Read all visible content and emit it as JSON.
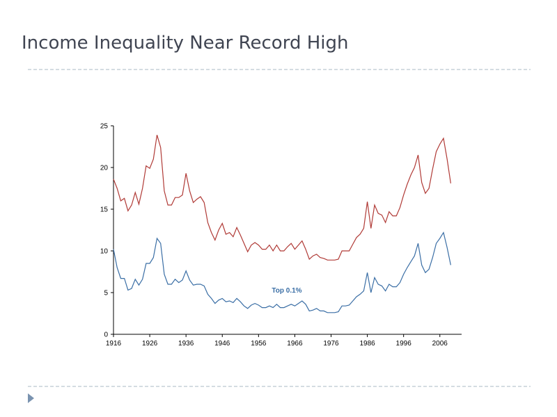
{
  "title": "Income Inequality Near Record High",
  "chart_data": {
    "type": "line",
    "x": [
      1916,
      1917,
      1918,
      1919,
      1920,
      1921,
      1922,
      1923,
      1924,
      1925,
      1926,
      1927,
      1928,
      1929,
      1930,
      1931,
      1932,
      1933,
      1934,
      1935,
      1936,
      1937,
      1938,
      1939,
      1940,
      1941,
      1942,
      1943,
      1944,
      1945,
      1946,
      1947,
      1948,
      1949,
      1950,
      1951,
      1952,
      1953,
      1954,
      1955,
      1956,
      1957,
      1958,
      1959,
      1960,
      1961,
      1962,
      1963,
      1964,
      1965,
      1966,
      1967,
      1968,
      1969,
      1970,
      1971,
      1972,
      1973,
      1974,
      1975,
      1976,
      1977,
      1978,
      1979,
      1980,
      1981,
      1982,
      1983,
      1984,
      1985,
      1986,
      1987,
      1988,
      1989,
      1990,
      1991,
      1992,
      1993,
      1994,
      1995,
      1996,
      1997,
      1998,
      1999,
      2000,
      2001,
      2002,
      2003,
      2004,
      2005,
      2006,
      2007,
      2008,
      2009
    ],
    "series": [
      {
        "color": "#b03a36",
        "values": [
          18.6,
          17.5,
          16.0,
          16.3,
          14.8,
          15.5,
          17.0,
          15.6,
          17.5,
          20.2,
          19.9,
          21.0,
          23.9,
          22.4,
          17.2,
          15.5,
          15.5,
          16.4,
          16.4,
          16.7,
          19.3,
          17.2,
          15.8,
          16.2,
          16.5,
          15.8,
          13.4,
          12.2,
          11.3,
          12.5,
          13.3,
          12.0,
          12.2,
          11.7,
          12.8,
          11.9,
          10.9,
          9.9,
          10.7,
          11.0,
          10.7,
          10.2,
          10.2,
          10.7,
          10.0,
          10.7,
          10.0,
          10.0,
          10.5,
          10.9,
          10.2,
          10.7,
          11.2,
          10.2,
          9.0,
          9.4,
          9.6,
          9.2,
          9.1,
          8.9,
          8.9,
          8.9,
          9.0,
          10.0,
          10.0,
          10.0,
          10.8,
          11.6,
          12.0,
          12.7,
          15.9,
          12.7,
          15.5,
          14.5,
          14.3,
          13.4,
          14.7,
          14.2,
          14.2,
          15.2,
          16.7,
          18.0,
          19.1,
          20.0,
          21.5,
          18.2,
          16.9,
          17.5,
          19.8,
          21.9,
          22.8,
          23.5,
          21.0,
          18.1
        ]
      },
      {
        "name": "Top 0.1%",
        "color": "#3a6ea5",
        "values": [
          10.2,
          8.0,
          6.7,
          6.7,
          5.3,
          5.5,
          6.6,
          5.9,
          6.6,
          8.5,
          8.5,
          9.2,
          11.5,
          10.9,
          7.2,
          6.0,
          6.0,
          6.6,
          6.2,
          6.5,
          7.6,
          6.5,
          5.9,
          6.0,
          6.0,
          5.8,
          4.8,
          4.3,
          3.7,
          4.1,
          4.3,
          3.9,
          4.0,
          3.8,
          4.3,
          3.9,
          3.4,
          3.1,
          3.5,
          3.7,
          3.5,
          3.2,
          3.2,
          3.4,
          3.2,
          3.6,
          3.2,
          3.2,
          3.4,
          3.6,
          3.4,
          3.7,
          4.0,
          3.6,
          2.8,
          2.9,
          3.1,
          2.8,
          2.8,
          2.6,
          2.6,
          2.6,
          2.7,
          3.4,
          3.4,
          3.5,
          4.0,
          4.5,
          4.8,
          5.2,
          7.4,
          5.0,
          6.8,
          6.0,
          5.8,
          5.2,
          6.0,
          5.7,
          5.7,
          6.2,
          7.2,
          8.0,
          8.7,
          9.4,
          10.9,
          8.3,
          7.4,
          7.8,
          9.2,
          10.9,
          11.5,
          12.2,
          10.4,
          8.3
        ]
      }
    ],
    "xlim": [
      1916,
      2012
    ],
    "xticks": [
      1916,
      1926,
      1936,
      1946,
      1956,
      1966,
      1976,
      1986,
      1996,
      2006
    ],
    "ylim": [
      0,
      25
    ],
    "yticks": [
      0,
      5,
      10,
      15,
      20,
      25
    ]
  }
}
